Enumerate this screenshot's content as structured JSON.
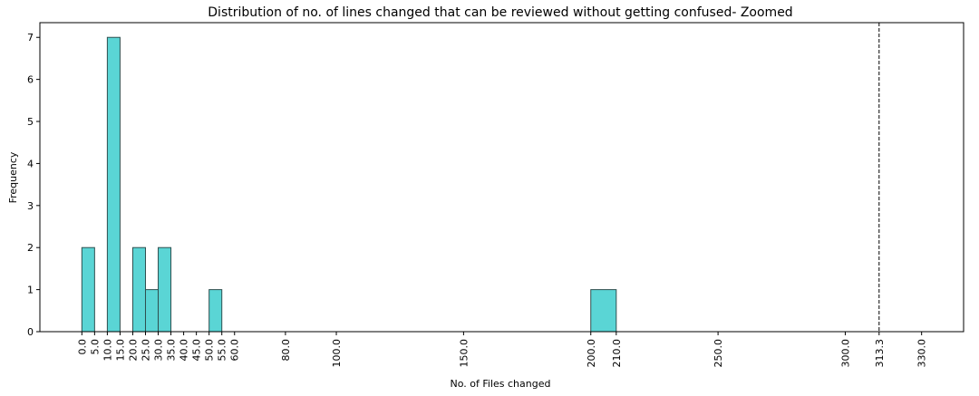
{
  "chart_data": {
    "type": "bar",
    "title": "Distribution of no. of lines changed that can be reviewed without getting confused- Zoomed",
    "xlabel": "No. of Files changed",
    "ylabel": "Frequency",
    "xlim": [
      -16.5,
      346.5
    ],
    "ylim": [
      0,
      7.35
    ],
    "bin_edges": [
      0,
      5,
      10,
      15,
      20,
      25,
      30,
      35,
      40,
      45,
      50,
      55,
      60,
      80,
      100,
      150,
      200,
      210,
      250,
      300,
      313.3,
      330
    ],
    "values": [
      2,
      0,
      7,
      0,
      2,
      1,
      2,
      0,
      0,
      0,
      1,
      0,
      0,
      0,
      0,
      0,
      1,
      0,
      0,
      0,
      0
    ],
    "x_ticks": [
      0,
      5,
      10,
      15,
      20,
      25,
      30,
      35,
      40,
      45,
      50,
      55,
      60,
      80,
      100,
      150,
      200,
      210,
      250,
      300,
      313.3,
      330
    ],
    "x_tick_labels": [
      "0.0",
      "5.0",
      "10.0",
      "15.0",
      "20.0",
      "25.0",
      "30.0",
      "35.0",
      "40.0",
      "45.0",
      "50.0",
      "55.0",
      "60.0",
      "80.0",
      "100.0",
      "150.0",
      "200.0",
      "210.0",
      "250.0",
      "300.0",
      "313.3",
      "330.0"
    ],
    "y_ticks": [
      0,
      1,
      2,
      3,
      4,
      5,
      6,
      7
    ],
    "y_tick_labels": [
      "0",
      "1",
      "2",
      "3",
      "4",
      "5",
      "6",
      "7"
    ],
    "vline": {
      "x": 313.3,
      "style": "dashed"
    },
    "bar_color": "#5ad5d5",
    "bar_edge_color": "#2f4f4f",
    "grid": false,
    "legend": "none"
  }
}
